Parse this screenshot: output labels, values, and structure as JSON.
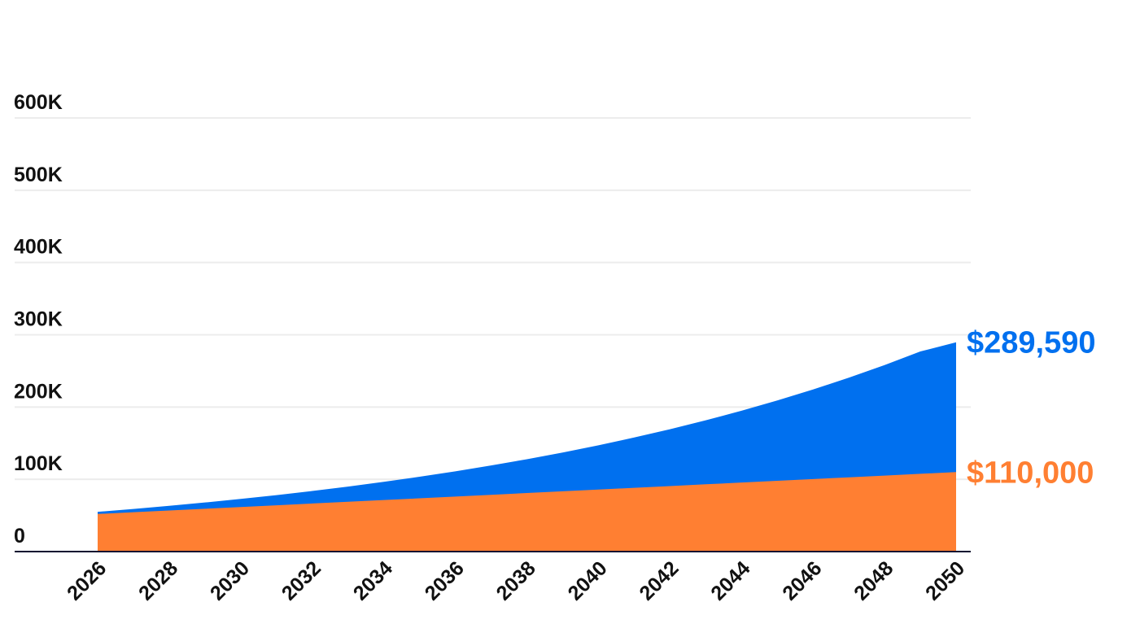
{
  "chart_data": {
    "type": "area",
    "x": [
      2026,
      2027,
      2028,
      2029,
      2030,
      2031,
      2032,
      2033,
      2034,
      2035,
      2036,
      2037,
      2038,
      2039,
      2040,
      2041,
      2042,
      2043,
      2044,
      2045,
      2046,
      2047,
      2048,
      2049,
      2050
    ],
    "x_tick_labels": [
      "2026",
      "2028",
      "2030",
      "2032",
      "2034",
      "2036",
      "2038",
      "2040",
      "2042",
      "2044",
      "2046",
      "2048",
      "2050"
    ],
    "y_tick_labels": [
      "0",
      "100K",
      "200K",
      "300K",
      "400K",
      "500K",
      "600K"
    ],
    "y_ticks": [
      0,
      100000,
      200000,
      300000,
      400000,
      500000,
      600000
    ],
    "ylim": [
      0,
      600000
    ],
    "grid": true,
    "series": [
      {
        "color": "#0070ef",
        "end_label": "$289,590",
        "values": [
          55000,
          59010,
          63300,
          67910,
          72860,
          78160,
          83850,
          89950,
          96500,
          103530,
          111060,
          119150,
          127820,
          137120,
          147110,
          157820,
          169300,
          181630,
          194860,
          209040,
          224260,
          240590,
          258100,
          276890,
          289590
        ]
      },
      {
        "color": "#ff7f32",
        "end_label": "$110,000",
        "values": [
          52000,
          54420,
          56830,
          59250,
          61670,
          64080,
          66500,
          68920,
          71330,
          73750,
          76170,
          78580,
          81000,
          83420,
          85830,
          88250,
          90670,
          93080,
          95500,
          97920,
          100330,
          102750,
          105170,
          107580,
          110000
        ]
      }
    ]
  }
}
